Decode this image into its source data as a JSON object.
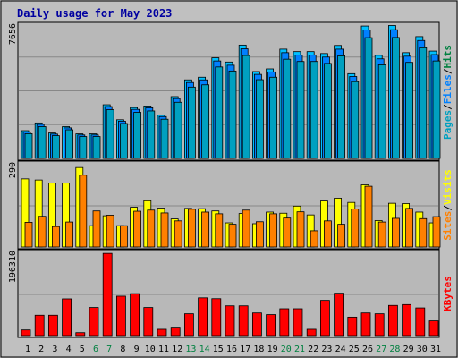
{
  "colors": {
    "background": "#c0c0c0",
    "panel": "#b8b8b8",
    "border": "#000000",
    "title": "#0000a0",
    "hits": "#00c0ff",
    "files": "#0080ff",
    "pages": "#00a0c0",
    "visits": "#ffff00",
    "sites": "#ff8000",
    "kbytes": "#ff0000",
    "weekend_label": "#008040"
  },
  "chart_data": {
    "type": "bar",
    "title": "Daily usage for May 2023",
    "categories": [
      "1",
      "2",
      "3",
      "4",
      "5",
      "6",
      "7",
      "8",
      "9",
      "10",
      "11",
      "12",
      "13",
      "14",
      "15",
      "16",
      "17",
      "18",
      "19",
      "20",
      "21",
      "22",
      "23",
      "24",
      "25",
      "26",
      "27",
      "28",
      "29",
      "30",
      "31"
    ],
    "weekend_days": [
      "6",
      "7",
      "13",
      "14",
      "20",
      "21",
      "27",
      "28"
    ],
    "panels": [
      {
        "id": "hits-files-pages",
        "ymax_label": "7656",
        "ylim": [
          0,
          7656
        ],
        "legend": [
          "Hits",
          "Files",
          "Pages"
        ],
        "series": [
          {
            "name": "Hits",
            "values": [
              1570,
              2010,
              1440,
              1800,
              1390,
              1390,
              3040,
              2190,
              2880,
              2970,
              2450,
              3500,
              4450,
              4600,
              5700,
              5460,
              6420,
              4920,
              5070,
              6190,
              6050,
              6050,
              5940,
              6400,
              4800,
              7500,
              5840,
              7530,
              5990,
              6900,
              6080
            ]
          },
          {
            "name": "Files",
            "values": [
              1500,
              1930,
              1380,
              1730,
              1330,
              1330,
              2940,
              2110,
              2780,
              2870,
              2370,
              3390,
              4300,
              4450,
              5520,
              5280,
              6210,
              4760,
              4900,
              5990,
              5850,
              5850,
              5740,
              6190,
              4640,
              7280,
              5640,
              7290,
              5790,
              6680,
              5880
            ]
          },
          {
            "name": "Pages",
            "values": [
              1400,
              1800,
              1290,
              1620,
              1240,
              1240,
              2760,
              1980,
              2610,
              2690,
              2220,
              3180,
              4040,
              4170,
              5180,
              4950,
              5830,
              4460,
              4600,
              5620,
              5490,
              5490,
              5380,
              5810,
              4350,
              6840,
              5300,
              6850,
              5440,
              6270,
              5520
            ]
          }
        ]
      },
      {
        "id": "visits-sites",
        "ymax_label": "290",
        "ylim": [
          0,
          290
        ],
        "legend": [
          "Visits",
          "Sites"
        ],
        "series": [
          {
            "name": "Visits",
            "values": [
              240,
              236,
              225,
              225,
              280,
              75,
              110,
              75,
              140,
              163,
              137,
              99,
              136,
              135,
              127,
              85,
              118,
              82,
              123,
              119,
              144,
              113,
              162,
              172,
              157,
              219,
              93,
              154,
              153,
              123,
              85
            ]
          },
          {
            "name": "Sites",
            "values": [
              87,
              108,
              72,
              88,
              253,
              127,
              112,
              75,
              126,
              130,
              120,
              92,
              133,
              123,
              117,
              80,
              130,
              89,
              117,
              102,
              124,
              57,
              92,
              80,
              134,
              214,
              88,
              101,
              136,
              100,
              107
            ]
          }
        ]
      },
      {
        "id": "kbytes",
        "ymax_label": "196310",
        "ylim": [
          0,
          196310
        ],
        "legend": [
          "KBytes"
        ],
        "series": [
          {
            "name": "KBytes",
            "values": [
              13500,
              48500,
              48500,
              87500,
              7000,
              67000,
              196000,
              94000,
              100000,
              67000,
              15000,
              20000,
              52000,
              90000,
              88000,
              71000,
              71000,
              54000,
              50000,
              64000,
              64000,
              15000,
              84000,
              101000,
              44000,
              54000,
              52000,
              72000,
              74000,
              66000,
              35000
            ]
          }
        ]
      }
    ]
  }
}
